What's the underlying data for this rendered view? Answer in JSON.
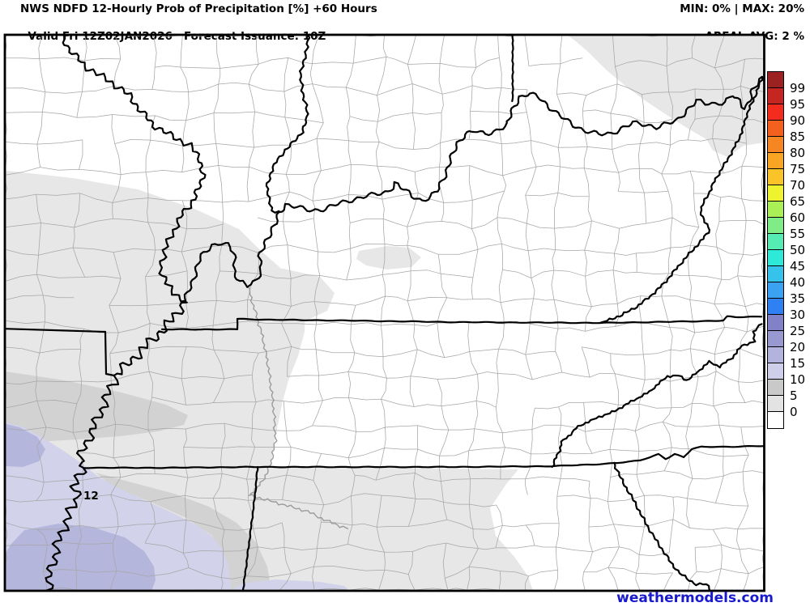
{
  "header": {
    "line1": "NWS NDFD 12-Hourly Prob of Precipitation [%] +60 Hours",
    "line2": "Valid Fri 12Z02JAN2026   Forecast Issuance: 10Z",
    "min_max": "MIN: 0% | MAX: 20%",
    "areal_avg": "AREAL AVG: 2 %"
  },
  "map": {
    "local_max_label": "12",
    "shading_colors": {
      "pop_0_5": "#e7e7e7",
      "pop_5_10": "#d2d2d2",
      "pop_10_15": "#d2d2ea",
      "pop_15_20": "#b5b6dc"
    },
    "border_color": "#000000",
    "county_line_color": "#a6a6a6",
    "river_color": "#9b9b9b"
  },
  "colorbar": {
    "stops": [
      {
        "label": "99",
        "color": "#9b2221"
      },
      {
        "label": "95",
        "color": "#c52622"
      },
      {
        "label": "90",
        "color": "#f32c1e"
      },
      {
        "label": "85",
        "color": "#f4611f"
      },
      {
        "label": "80",
        "color": "#f68621"
      },
      {
        "label": "75",
        "color": "#f8a524"
      },
      {
        "label": "70",
        "color": "#fac32a"
      },
      {
        "label": "65",
        "color": "#edf32e"
      },
      {
        "label": "60",
        "color": "#a9ef55"
      },
      {
        "label": "55",
        "color": "#7fec85"
      },
      {
        "label": "50",
        "color": "#55ebb3"
      },
      {
        "label": "45",
        "color": "#2fe9d8"
      },
      {
        "label": "40",
        "color": "#36c3eb"
      },
      {
        "label": "35",
        "color": "#3aa2f1"
      },
      {
        "label": "30",
        "color": "#2f80f2"
      },
      {
        "label": "25",
        "color": "#8081c6"
      },
      {
        "label": "20",
        "color": "#9899d1"
      },
      {
        "label": "15",
        "color": "#b3b4dd"
      },
      {
        "label": "10",
        "color": "#cfcfe9"
      },
      {
        "label": "5",
        "color": "#c9c9c9"
      },
      {
        "label": "0",
        "color": "#e3e3e3"
      },
      {
        "label": "",
        "color": "#ffffff"
      }
    ]
  },
  "watermark": {
    "text": "weathermodels.com",
    "color": "#1a1acd"
  }
}
